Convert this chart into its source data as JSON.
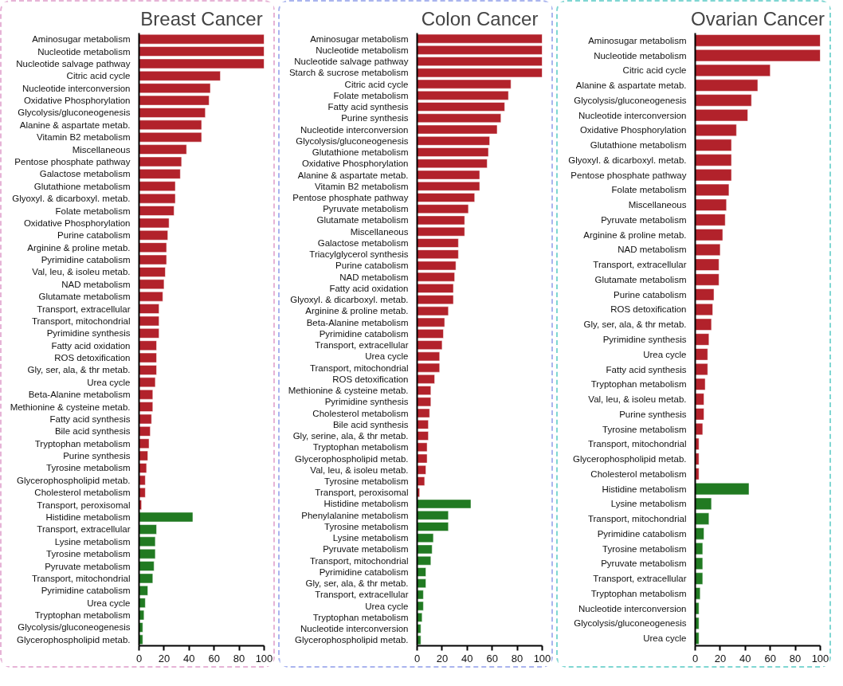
{
  "chart_data": [
    {
      "type": "bar",
      "orientation": "horizontal",
      "title": "Breast Cancer",
      "categories": [
        "Aminosugar metabolism",
        "Nucleotide metabolism",
        "Nucleotide salvage pathway",
        "Citric acid cycle",
        "Nucleotide interconversion",
        "Oxidative Phosphorylation",
        "Glycolysis/gluconeogenesis",
        "Alanine & aspartate metab.",
        "Vitamin B2 metabolism",
        "Miscellaneous",
        "Pentose phosphate pathway",
        "Galactose metabolism",
        "Glutathione metabolism",
        "Glyoxyl. & dicarboxyl. metab.",
        "Folate metabolism",
        "Oxidative Phosphorylation",
        "Purine catabolism",
        "Arginine & proline metab.",
        "Pyrimidine catabolism",
        "Val, leu, & isoleu metab.",
        "NAD metabolism",
        "Glutamate metabolism",
        "Transport, extracellular",
        "Transport, mitochondrial",
        "Pyrimidine synthesis",
        "Fatty acid oxidation",
        "ROS detoxification",
        "Gly, ser, ala, & thr metab.",
        "Urea cycle",
        "Beta-Alanine metabolism",
        "Methionine & cysteine metab.",
        "Fatty acid synthesis",
        "Bile acid synthesis",
        "Tryptophan metabolism",
        "Purine synthesis",
        "Tyrosine metabolism",
        "Glycerophospholipid metab.",
        "Cholesterol metabolism",
        "Transport, peroxisomal",
        "Histidine metabolism",
        "Transport, extracellular",
        "Lysine metabolism",
        "Tyrosine metabolism",
        "Pyruvate metabolism",
        "Transport, mitochondrial",
        "Pyrimidine catabolism",
        "Urea cycle",
        "Tryptophan metabolism",
        "Glycolysis/gluconeogenesis",
        "Glycerophospholipid metab."
      ],
      "values": [
        100,
        100,
        100,
        65,
        57,
        56,
        53,
        50,
        50,
        38,
        34,
        33,
        29,
        29,
        28,
        24,
        23,
        22,
        22,
        21,
        20,
        19,
        16,
        16,
        16,
        14,
        14,
        14,
        13,
        11,
        11,
        10,
        9,
        8,
        7,
        6,
        5,
        5,
        2,
        43,
        14,
        13,
        13,
        12,
        11,
        7,
        5,
        4,
        3,
        3
      ],
      "colors": [
        "#b2222b",
        "#b2222b",
        "#b2222b",
        "#b2222b",
        "#b2222b",
        "#b2222b",
        "#b2222b",
        "#b2222b",
        "#b2222b",
        "#b2222b",
        "#b2222b",
        "#b2222b",
        "#b2222b",
        "#b2222b",
        "#b2222b",
        "#b2222b",
        "#b2222b",
        "#b2222b",
        "#b2222b",
        "#b2222b",
        "#b2222b",
        "#b2222b",
        "#b2222b",
        "#b2222b",
        "#b2222b",
        "#b2222b",
        "#b2222b",
        "#b2222b",
        "#b2222b",
        "#b2222b",
        "#b2222b",
        "#b2222b",
        "#b2222b",
        "#b2222b",
        "#b2222b",
        "#b2222b",
        "#b2222b",
        "#b2222b",
        "#b2222b",
        "#217a22",
        "#217a22",
        "#217a22",
        "#217a22",
        "#217a22",
        "#217a22",
        "#217a22",
        "#217a22",
        "#217a22",
        "#217a22",
        "#217a22"
      ],
      "xlim": [
        0,
        100
      ],
      "xticks": [
        0,
        20,
        40,
        60,
        80,
        100
      ],
      "grid": false
    },
    {
      "type": "bar",
      "orientation": "horizontal",
      "title": "Colon Cancer",
      "categories": [
        "Aminosugar metabolism",
        "Nucleotide metabolism",
        "Nucleotide salvage pathway",
        "Starch & sucrose metabolism",
        "Citric acid cycle",
        "Folate metabolism",
        "Fatty acid synthesis",
        "Purine synthesis",
        "Nucleotide interconversion",
        "Glycolysis/gluconeogenesis",
        "Glutathione metabolism",
        "Oxidative Phosphorylation",
        "Alanine & aspartate metab.",
        "Vitamin B2 metabolism",
        "Pentose phosphate pathway",
        "Pyruvate metabolism",
        "Glutamate metabolism",
        "Miscellaneous",
        "Galactose metabolism",
        "Triacylglycerol synthesis",
        "Purine catabolism",
        "NAD metabolism",
        "Fatty acid oxidation",
        "Glyoxyl. & dicarboxyl. metab.",
        "Arginine & proline metab.",
        "Beta-Alanine metabolism",
        "Pyrimidine catabolism",
        "Transport, extracellular",
        "Urea cycle",
        "Transport, mitochondrial",
        "ROS detoxification",
        "Methionine & cysteine metab.",
        "Pyrimidine synthesis",
        "Cholesterol metabolism",
        "Bile acid synthesis",
        "Gly, serine, ala, & thr metab.",
        "Tryptophan metabolism",
        "Glycerophospholipid metab.",
        "Val, leu, & isoleu metab.",
        "Tyrosine metabolism",
        "Transport, peroxisomal",
        "Histidine metabolism",
        "Phenylalanine metabolism",
        "Tyrosine metabolism",
        "Lysine metabolism",
        "Pyruvate metabolism",
        "Transport, mitochondrial",
        "Pyrimidine catabolism",
        "Gly, ser, ala, & thr metab.",
        "Transport, extracellular",
        "Urea cycle",
        "Tryptophan metabolism",
        "Nucleotide interconversion",
        "Glycerophospholipid metab."
      ],
      "values": [
        100,
        100,
        100,
        100,
        75,
        73,
        70,
        67,
        64,
        58,
        57,
        56,
        50,
        50,
        46,
        41,
        38,
        38,
        33,
        33,
        31,
        30,
        29,
        29,
        25,
        22,
        21,
        20,
        18,
        18,
        14,
        11,
        11,
        10,
        9,
        9,
        8,
        8,
        7,
        6,
        2,
        43,
        25,
        25,
        13,
        12,
        11,
        7,
        7,
        5,
        5,
        4,
        3,
        3
      ],
      "colors": [
        "#b2222b",
        "#b2222b",
        "#b2222b",
        "#b2222b",
        "#b2222b",
        "#b2222b",
        "#b2222b",
        "#b2222b",
        "#b2222b",
        "#b2222b",
        "#b2222b",
        "#b2222b",
        "#b2222b",
        "#b2222b",
        "#b2222b",
        "#b2222b",
        "#b2222b",
        "#b2222b",
        "#b2222b",
        "#b2222b",
        "#b2222b",
        "#b2222b",
        "#b2222b",
        "#b2222b",
        "#b2222b",
        "#b2222b",
        "#b2222b",
        "#b2222b",
        "#b2222b",
        "#b2222b",
        "#b2222b",
        "#b2222b",
        "#b2222b",
        "#b2222b",
        "#b2222b",
        "#b2222b",
        "#b2222b",
        "#b2222b",
        "#b2222b",
        "#b2222b",
        "#b2222b",
        "#217a22",
        "#217a22",
        "#217a22",
        "#217a22",
        "#217a22",
        "#217a22",
        "#217a22",
        "#217a22",
        "#217a22",
        "#217a22",
        "#217a22",
        "#217a22",
        "#217a22"
      ],
      "xlim": [
        0,
        100
      ],
      "xticks": [
        0,
        20,
        40,
        60,
        80,
        100
      ],
      "grid": false
    },
    {
      "type": "bar",
      "orientation": "horizontal",
      "title": "Ovarian Cancer",
      "categories": [
        "Aminosugar metabolism",
        "Nucleotide metabolism",
        "Citric acid cycle",
        "Alanine & aspartate metab.",
        "Glycolysis/gluconeogenesis",
        "Nucleotide interconversion",
        "Oxidative Phosphorylation",
        "Glutathione metabolism",
        "Glyoxyl. & dicarboxyl. metab.",
        "Pentose phosphate pathway",
        "Folate metabolism",
        "Miscellaneous",
        "Pyruvate metabolism",
        "Arginine & proline metab.",
        "NAD metabolism",
        "Transport, extracellular",
        "Glutamate metabolism",
        "Purine catabolism",
        "ROS detoxification",
        "Gly, ser, ala, & thr metab.",
        "Pyrimidine synthesis",
        "Urea cycle",
        "Fatty acid synthesis",
        "Tryptophan metabolism",
        "Val, leu, & isoleu metab.",
        "Purine synthesis",
        "Tyrosine metabolism",
        "Transport, mitochondrial",
        "Glycerophospholipid metab.",
        "Cholesterol metabolism",
        "Histidine metabolism",
        "Lysine metabolism",
        "Transport, mitochondrial",
        "Pyrimidine catabolism",
        "Tyrosine metabolism",
        "Pyruvate metabolism",
        "Transport, extracellular",
        "Tryptophan metabolism",
        "Nucleotide interconversion",
        "Glycolysis/gluconeogenesis",
        "Urea cycle"
      ],
      "values": [
        100,
        100,
        60,
        50,
        45,
        42,
        33,
        29,
        29,
        29,
        27,
        25,
        24,
        22,
        20,
        19,
        19,
        15,
        14,
        13,
        11,
        10,
        10,
        8,
        7,
        7,
        6,
        3,
        3,
        3,
        43,
        13,
        11,
        7,
        6,
        6,
        6,
        4,
        3,
        3,
        3
      ],
      "colors": [
        "#b2222b",
        "#b2222b",
        "#b2222b",
        "#b2222b",
        "#b2222b",
        "#b2222b",
        "#b2222b",
        "#b2222b",
        "#b2222b",
        "#b2222b",
        "#b2222b",
        "#b2222b",
        "#b2222b",
        "#b2222b",
        "#b2222b",
        "#b2222b",
        "#b2222b",
        "#b2222b",
        "#b2222b",
        "#b2222b",
        "#b2222b",
        "#b2222b",
        "#b2222b",
        "#b2222b",
        "#b2222b",
        "#b2222b",
        "#b2222b",
        "#b2222b",
        "#b2222b",
        "#b2222b",
        "#217a22",
        "#217a22",
        "#217a22",
        "#217a22",
        "#217a22",
        "#217a22",
        "#217a22",
        "#217a22",
        "#217a22",
        "#217a22",
        "#217a22"
      ],
      "xlim": [
        0,
        100
      ],
      "xticks": [
        0,
        20,
        40,
        60,
        80,
        100
      ],
      "grid": false
    }
  ]
}
